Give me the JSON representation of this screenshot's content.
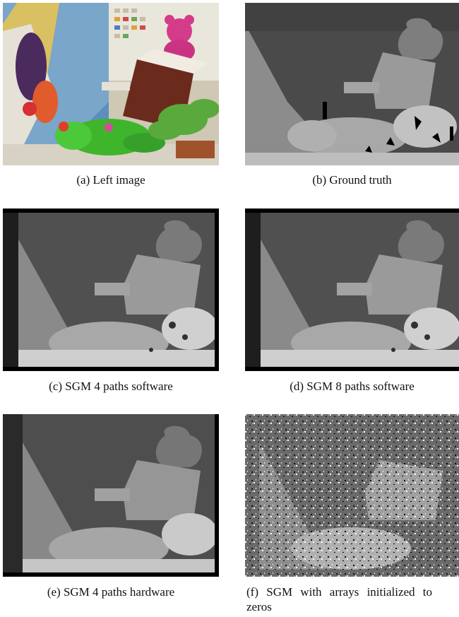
{
  "figure": {
    "panels": [
      {
        "id": "a",
        "caption": "(a) Left image"
      },
      {
        "id": "b",
        "caption": "(b) Ground truth"
      },
      {
        "id": "c",
        "caption": "(c) SGM 4 paths software"
      },
      {
        "id": "d",
        "caption": "(d) SGM 8 paths software"
      },
      {
        "id": "e",
        "caption": "(e) SGM 4 paths hardware"
      },
      {
        "id": "f",
        "caption_line1": "(f) SGM with arrays initialized to",
        "caption_line2": "zeros"
      }
    ]
  }
}
